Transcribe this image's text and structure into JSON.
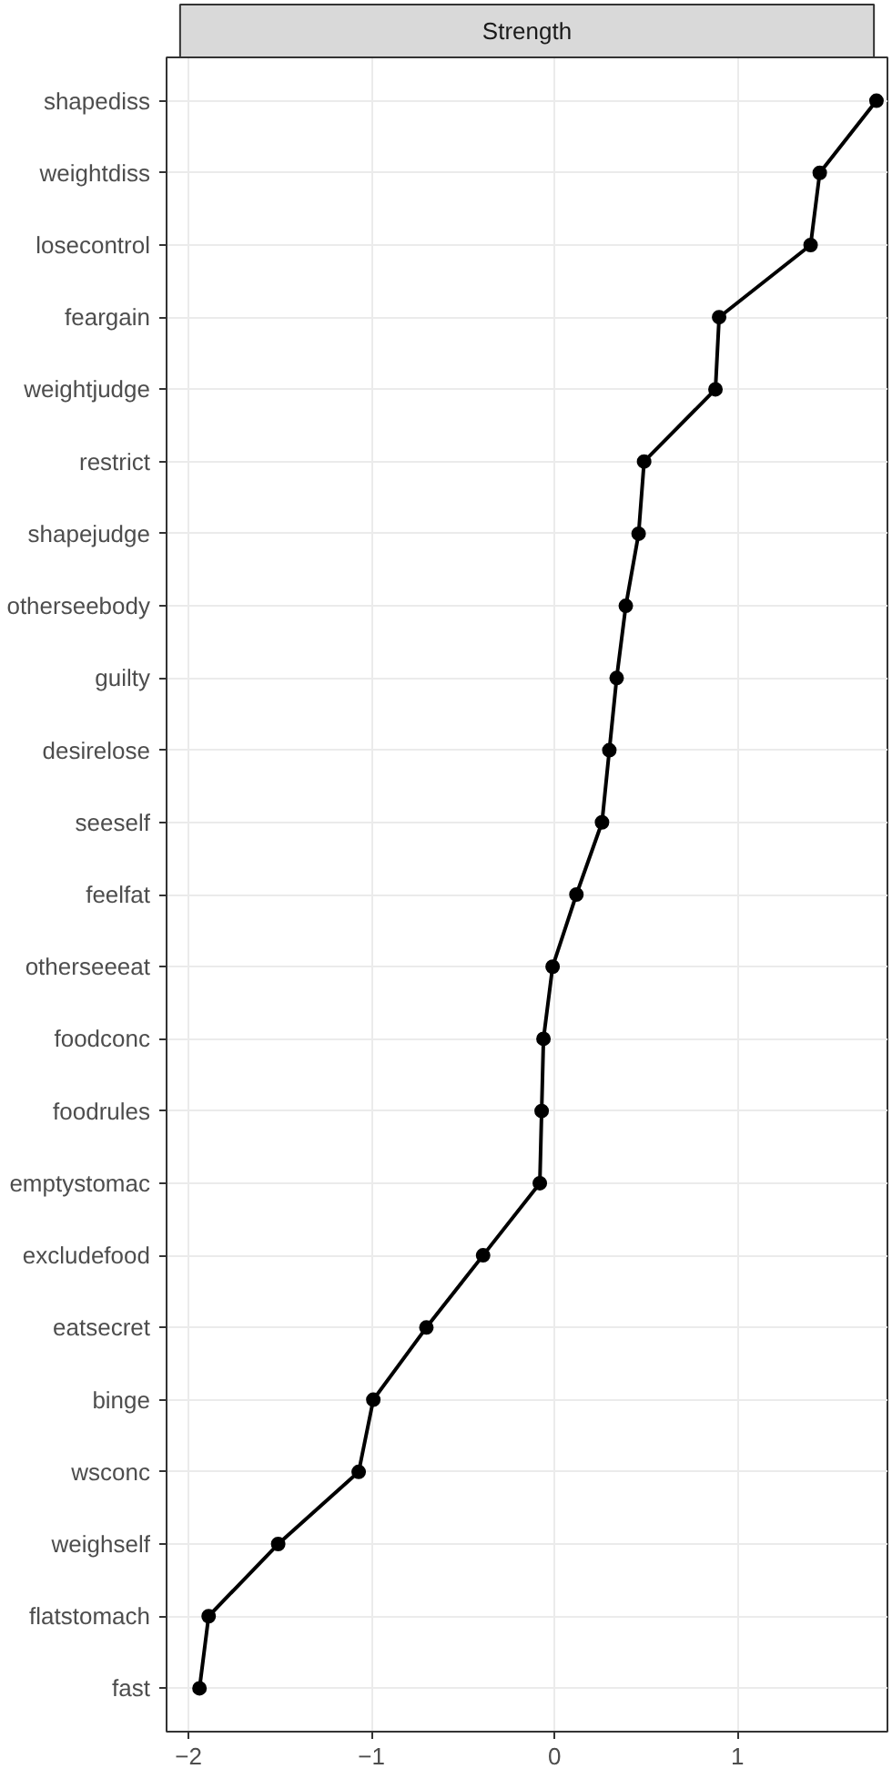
{
  "chart_data": {
    "type": "line",
    "orientation": "horizontal",
    "title": "Strength",
    "categories": [
      "shapediss",
      "weightdiss",
      "losecontrol",
      "feargain",
      "weightjudge",
      "restrict",
      "shapejudge",
      "otherseebody",
      "guilty",
      "desirelose",
      "seeself",
      "feelfat",
      "otherseeeat",
      "foodconc",
      "foodrules",
      "emptystomac",
      "excludefood",
      "eatsecret",
      "binge",
      "wsconc",
      "weighself",
      "flatstomach",
      "fast"
    ],
    "series": [
      {
        "color": "#000000",
        "values": [
          1.76,
          1.45,
          1.4,
          0.9,
          0.88,
          0.49,
          0.46,
          0.39,
          0.34,
          0.3,
          0.26,
          0.12,
          -0.01,
          -0.06,
          -0.07,
          -0.08,
          -0.39,
          -0.7,
          -0.99,
          -1.07,
          -1.51,
          -1.89,
          -1.94
        ]
      }
    ],
    "xlim": [
      -2.12,
      1.82
    ],
    "xticks": [
      {
        "value": -2,
        "label": "−2"
      },
      {
        "value": -1,
        "label": "−1"
      },
      0,
      1
    ],
    "grid": true,
    "marker": "circle",
    "line_style": "solid"
  }
}
